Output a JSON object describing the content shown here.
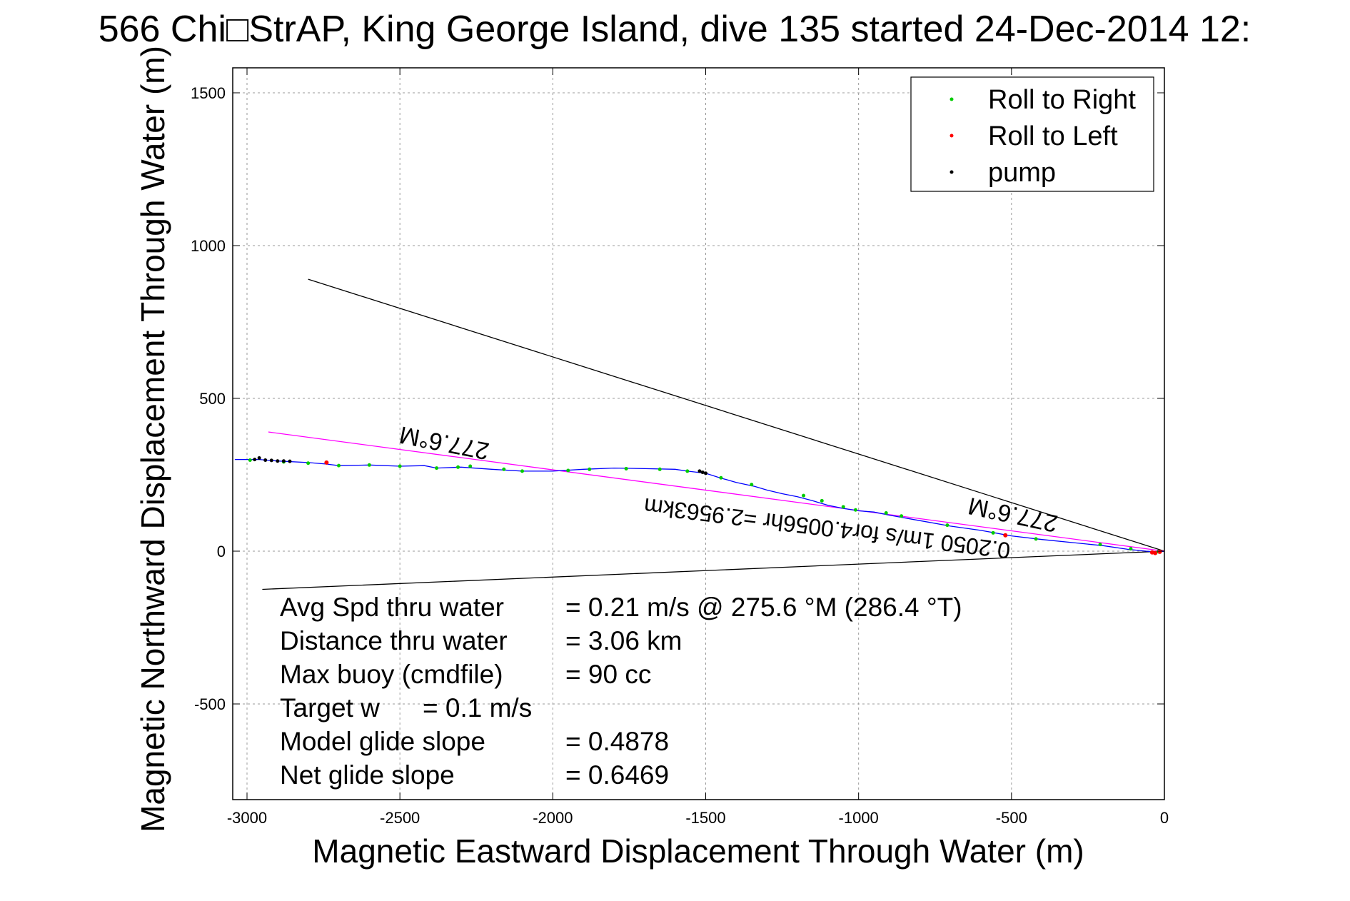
{
  "chart_data": {
    "type": "line",
    "title": "566 Chi□StrAP, King George Island, dive 135 started 24-Dec-2014 12:",
    "xlabel": "Magnetic Eastward Displacement Through Water (m)",
    "ylabel": "Magnetic Northward Displacement Through Water (m)",
    "xlim": [
      -3040,
      0
    ],
    "ylim": [
      -820,
      1610
    ],
    "xticks": [
      -3000,
      -2500,
      -2000,
      -1500,
      -1000,
      -500,
      0
    ],
    "yticks": [
      -500,
      0,
      500,
      1000,
      1500
    ],
    "xtick_labels": [
      "-3000",
      "-2500",
      "-2000",
      "-1500",
      "-1000",
      "-500",
      "0"
    ],
    "ytick_labels": [
      "-500",
      "0",
      "500",
      "1000",
      "1500"
    ],
    "grid": true,
    "legend_position": "top-right",
    "legend": [
      {
        "label": "Roll to Right",
        "color": "#00cc00"
      },
      {
        "label": "Roll to Left",
        "color": "#ff0000"
      },
      {
        "label": "pump",
        "color": "#000000"
      }
    ],
    "series": [
      {
        "color": "#0000ff",
        "x": [
          -3040,
          -2960,
          -2900,
          -2800,
          -2740,
          -2700,
          -2600,
          -2500,
          -2420,
          -2380,
          -2300,
          -2200,
          -2100,
          -2000,
          -1900,
          -1800,
          -1700,
          -1600,
          -1560,
          -1500,
          -1460,
          -1400,
          -1340,
          -1300,
          -1250,
          -1200,
          -1150,
          -1100,
          -1050,
          -1000,
          -950,
          -900,
          -800,
          -700,
          -600,
          -500,
          -400,
          -300,
          -200,
          -120,
          -60,
          -20,
          0
        ],
        "y": [
          300,
          300,
          295,
          290,
          285,
          280,
          282,
          278,
          280,
          272,
          275,
          268,
          262,
          262,
          268,
          272,
          270,
          268,
          262,
          255,
          242,
          225,
          212,
          200,
          188,
          178,
          165,
          150,
          140,
          132,
          128,
          118,
          100,
          82,
          68,
          50,
          38,
          28,
          18,
          6,
          0,
          -3,
          0
        ]
      }
    ],
    "roll_right_points": [
      [
        -2990,
        298
      ],
      [
        -2880,
        292
      ],
      [
        -2800,
        288
      ],
      [
        -2700,
        280
      ],
      [
        -2600,
        282
      ],
      [
        -2500,
        278
      ],
      [
        -2380,
        272
      ],
      [
        -2310,
        275
      ],
      [
        -2270,
        278
      ],
      [
        -2160,
        268
      ],
      [
        -2100,
        262
      ],
      [
        -1950,
        264
      ],
      [
        -1880,
        268
      ],
      [
        -1760,
        270
      ],
      [
        -1650,
        268
      ],
      [
        -1560,
        262
      ],
      [
        -1450,
        240
      ],
      [
        -1350,
        218
      ],
      [
        -1180,
        182
      ],
      [
        -1120,
        165
      ],
      [
        -1050,
        145
      ],
      [
        -1010,
        135
      ],
      [
        -910,
        125
      ],
      [
        -860,
        115
      ],
      [
        -710,
        85
      ],
      [
        -560,
        60
      ],
      [
        -420,
        40
      ],
      [
        -210,
        22
      ],
      [
        -110,
        8
      ],
      [
        -20,
        -2
      ]
    ],
    "roll_left_points": [
      [
        -2740,
        290
      ],
      [
        -520,
        52
      ],
      [
        -40,
        -4
      ],
      [
        -30,
        -6
      ],
      [
        -15,
        -2
      ]
    ],
    "pump_points": [
      [
        -2975,
        300
      ],
      [
        -2960,
        305
      ],
      [
        -2940,
        298
      ],
      [
        -2920,
        297
      ],
      [
        -2900,
        295
      ],
      [
        -2880,
        295
      ],
      [
        -2860,
        294
      ],
      [
        -1520,
        262
      ],
      [
        -1510,
        258
      ],
      [
        -1500,
        255
      ]
    ],
    "reference_lines": [
      {
        "color": "#000000",
        "x": [
          -2800,
          0
        ],
        "y": [
          890,
          0
        ]
      },
      {
        "color": "#000000",
        "x": [
          -2950,
          0
        ],
        "y": [
          -125,
          0
        ]
      },
      {
        "color": "#ff00ff",
        "x": [
          -2930,
          0
        ],
        "y": [
          390,
          0
        ]
      }
    ],
    "annotations": [
      {
        "text": "277.6°M",
        "x": -2350,
        "y": 380
      },
      {
        "text": "0.2050 1m/s for4.0056hr =2.9563km",
        "x": -1100,
        "y": 100
      },
      {
        "text": "277.6°M",
        "x": -490,
        "y": 145
      }
    ],
    "stats": [
      {
        "label": "Avg Spd thru water",
        "value": "=  0.21 m/s @ 275.6 °M (286.4 °T)"
      },
      {
        "label": "Distance thru water",
        "value": "=  3.06 km"
      },
      {
        "label": "Max buoy (cmdfile)",
        "value": "= 90 cc"
      },
      {
        "label": "Target w",
        "value": "= 0.1 m/s"
      },
      {
        "label": "Model glide slope",
        "value": "= 0.4878"
      },
      {
        "label": "Net glide slope",
        "value": "= 0.6469"
      }
    ]
  }
}
